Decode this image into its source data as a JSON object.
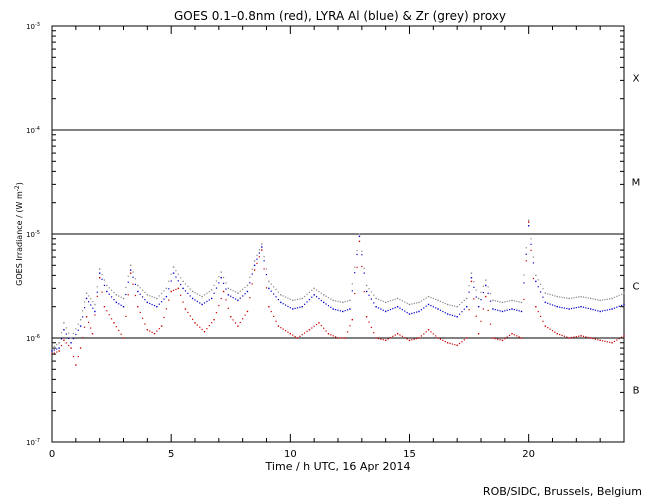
{
  "chart_data": {
    "type": "scatter",
    "title": "GOES 0.1–0.8nm (red), LYRA Al (blue) & Zr (grey) proxy",
    "xlabel": "Time / h UTC, 16 Apr 2014",
    "ylabel": "GOES Irradiance / (W m",
    "ylabel_sup": "-2",
    "ylabel_close": ")",
    "credit": "ROB/SIDC, Brussels, Belgium",
    "xlim": [
      0,
      24
    ],
    "ylim": [
      1e-07,
      0.001
    ],
    "y_scale": "log",
    "x_ticks": [
      {
        "value": 0,
        "label": "0"
      },
      {
        "value": 5,
        "label": "5"
      },
      {
        "value": 10,
        "label": "10"
      },
      {
        "value": 15,
        "label": "15"
      },
      {
        "value": 20,
        "label": "20"
      }
    ],
    "y_ticks": [
      {
        "value": 1e-07,
        "base": "10",
        "exp": "-7"
      },
      {
        "value": 1e-06,
        "base": "10",
        "exp": "-6"
      },
      {
        "value": 1e-05,
        "base": "10",
        "exp": "-5"
      },
      {
        "value": 0.0001,
        "base": "10",
        "exp": "-4"
      },
      {
        "value": 0.001,
        "base": "10",
        "exp": "-3"
      }
    ],
    "flare_classes": [
      {
        "label": "X",
        "value": 0.00032
      },
      {
        "label": "M",
        "value": 3.2e-05
      },
      {
        "label": "C",
        "value": 3.2e-06
      },
      {
        "label": "B",
        "value": 3.2e-07
      }
    ],
    "class_lines": [
      1e-06,
      1e-05,
      0.0001
    ],
    "series": [
      {
        "color": "#cc0000",
        "points": [
          [
            0.0,
            7e-07
          ],
          [
            0.3,
            7.5e-07
          ],
          [
            0.5,
            9.5e-07
          ],
          [
            0.8,
            8e-07
          ],
          [
            1.0,
            5.5e-07
          ],
          [
            1.2,
            8e-07
          ],
          [
            1.45,
            1.6e-06
          ],
          [
            1.7,
            1.1e-06
          ],
          [
            2.0,
            3.8e-06
          ],
          [
            2.2,
            2e-06
          ],
          [
            2.6,
            1.4e-06
          ],
          [
            3.0,
            1e-06
          ],
          [
            3.3,
            4.2e-06
          ],
          [
            3.6,
            2e-06
          ],
          [
            4.0,
            1.2e-06
          ],
          [
            4.3,
            1.1e-06
          ],
          [
            4.6,
            1.3e-06
          ],
          [
            5.0,
            2.8e-06
          ],
          [
            5.3,
            3e-06
          ],
          [
            5.6,
            1.9e-06
          ],
          [
            6.0,
            1.4e-06
          ],
          [
            6.4,
            1.15e-06
          ],
          [
            6.8,
            1.5e-06
          ],
          [
            7.2,
            2.8e-06
          ],
          [
            7.5,
            1.6e-06
          ],
          [
            7.8,
            1.3e-06
          ],
          [
            8.2,
            1.8e-06
          ],
          [
            8.5,
            4.5e-06
          ],
          [
            8.8,
            7e-06
          ],
          [
            9.1,
            2e-06
          ],
          [
            9.5,
            1.3e-06
          ],
          [
            10.0,
            1.1e-06
          ],
          [
            10.3,
            1e-06
          ],
          [
            10.8,
            1.2e-06
          ],
          [
            11.2,
            1.4e-06
          ],
          [
            11.6,
            1.1e-06
          ],
          [
            12.0,
            1e-06
          ],
          [
            12.3,
            1e-06
          ],
          [
            12.6,
            1.5e-06
          ],
          [
            12.9,
            8.5e-06
          ],
          [
            13.2,
            1.6e-06
          ],
          [
            13.6,
            1e-06
          ],
          [
            14.0,
            9.5e-07
          ],
          [
            14.5,
            1.1e-06
          ],
          [
            15.0,
            9.5e-07
          ],
          [
            15.4,
            1e-06
          ],
          [
            15.8,
            1.2e-06
          ],
          [
            16.2,
            1e-06
          ],
          [
            16.6,
            9e-07
          ],
          [
            17.0,
            8.5e-07
          ],
          [
            17.4,
            1e-06
          ],
          [
            17.6,
            3.5e-06
          ],
          [
            17.9,
            1.1e-06
          ],
          [
            18.2,
            2.5e-06
          ],
          [
            18.5,
            1e-06
          ],
          [
            18.9,
            9.5e-07
          ],
          [
            19.3,
            1.1e-06
          ],
          [
            19.7,
            1e-06
          ],
          [
            20.0,
            1.3e-05
          ],
          [
            20.3,
            2e-06
          ],
          [
            20.7,
            1.3e-06
          ],
          [
            21.2,
            1.1e-06
          ],
          [
            21.7,
            1e-06
          ],
          [
            22.2,
            1.05e-06
          ],
          [
            22.6,
            1e-06
          ],
          [
            23.0,
            9.5e-07
          ],
          [
            23.5,
            9e-07
          ],
          [
            24.0,
            1.05e-06
          ]
        ]
      },
      {
        "color": "#0000cc",
        "points": [
          [
            0.0,
            7.5e-07
          ],
          [
            0.3,
            8e-07
          ],
          [
            0.5,
            1.2e-06
          ],
          [
            0.8,
            9e-07
          ],
          [
            1.2,
            1.3e-06
          ],
          [
            1.45,
            2.4e-06
          ],
          [
            1.8,
            1.8e-06
          ],
          [
            2.0,
            4.2e-06
          ],
          [
            2.3,
            2.8e-06
          ],
          [
            2.7,
            2.2e-06
          ],
          [
            3.0,
            2e-06
          ],
          [
            3.3,
            4.5e-06
          ],
          [
            3.6,
            2.8e-06
          ],
          [
            4.0,
            2.2e-06
          ],
          [
            4.4,
            2e-06
          ],
          [
            4.8,
            2.5e-06
          ],
          [
            5.1,
            4.2e-06
          ],
          [
            5.5,
            3e-06
          ],
          [
            5.9,
            2.4e-06
          ],
          [
            6.3,
            2.1e-06
          ],
          [
            6.7,
            2.4e-06
          ],
          [
            7.1,
            3.8e-06
          ],
          [
            7.4,
            2.6e-06
          ],
          [
            7.8,
            2.3e-06
          ],
          [
            8.2,
            2.8e-06
          ],
          [
            8.5,
            5e-06
          ],
          [
            8.8,
            7.5e-06
          ],
          [
            9.1,
            3e-06
          ],
          [
            9.6,
            2.2e-06
          ],
          [
            10.1,
            1.9e-06
          ],
          [
            10.5,
            2e-06
          ],
          [
            11.0,
            2.6e-06
          ],
          [
            11.4,
            2.2e-06
          ],
          [
            11.8,
            1.9e-06
          ],
          [
            12.2,
            1.8e-06
          ],
          [
            12.5,
            1.9e-06
          ],
          [
            12.9,
            9.5e-06
          ],
          [
            13.2,
            2.8e-06
          ],
          [
            13.6,
            2e-06
          ],
          [
            14.0,
            1.8e-06
          ],
          [
            14.5,
            2e-06
          ],
          [
            15.0,
            1.7e-06
          ],
          [
            15.4,
            1.8e-06
          ],
          [
            15.8,
            2.1e-06
          ],
          [
            16.2,
            1.9e-06
          ],
          [
            16.6,
            1.7e-06
          ],
          [
            17.0,
            1.6e-06
          ],
          [
            17.4,
            2e-06
          ],
          [
            17.6,
            3.8e-06
          ],
          [
            17.9,
            2e-06
          ],
          [
            18.2,
            3.2e-06
          ],
          [
            18.5,
            1.9e-06
          ],
          [
            18.9,
            1.8e-06
          ],
          [
            19.3,
            1.9e-06
          ],
          [
            19.7,
            1.8e-06
          ],
          [
            20.0,
            1.2e-05
          ],
          [
            20.3,
            3.5e-06
          ],
          [
            20.7,
            2.2e-06
          ],
          [
            21.2,
            2e-06
          ],
          [
            21.7,
            1.9e-06
          ],
          [
            22.2,
            2e-06
          ],
          [
            22.6,
            1.9e-06
          ],
          [
            23.0,
            1.8e-06
          ],
          [
            23.5,
            1.9e-06
          ],
          [
            24.0,
            2.1e-06
          ]
        ]
      },
      {
        "color": "#888888",
        "points": [
          [
            0.0,
            8e-07
          ],
          [
            0.3,
            9e-07
          ],
          [
            0.5,
            1.4e-06
          ],
          [
            0.8,
            1e-06
          ],
          [
            1.2,
            1.5e-06
          ],
          [
            1.45,
            2.7e-06
          ],
          [
            1.8,
            2.1e-06
          ],
          [
            2.0,
            4.6e-06
          ],
          [
            2.3,
            3.2e-06
          ],
          [
            2.7,
            2.6e-06
          ],
          [
            3.0,
            2.4e-06
          ],
          [
            3.3,
            5e-06
          ],
          [
            3.6,
            3.2e-06
          ],
          [
            4.0,
            2.6e-06
          ],
          [
            4.4,
            2.4e-06
          ],
          [
            4.8,
            3e-06
          ],
          [
            5.1,
            4.8e-06
          ],
          [
            5.5,
            3.5e-06
          ],
          [
            5.9,
            2.8e-06
          ],
          [
            6.3,
            2.5e-06
          ],
          [
            6.7,
            2.9e-06
          ],
          [
            7.1,
            4.3e-06
          ],
          [
            7.4,
            3e-06
          ],
          [
            7.8,
            2.7e-06
          ],
          [
            8.2,
            3.2e-06
          ],
          [
            8.5,
            5.5e-06
          ],
          [
            8.8,
            8e-06
          ],
          [
            9.1,
            3.5e-06
          ],
          [
            9.6,
            2.6e-06
          ],
          [
            10.1,
            2.3e-06
          ],
          [
            10.5,
            2.4e-06
          ],
          [
            11.0,
            3e-06
          ],
          [
            11.4,
            2.6e-06
          ],
          [
            11.8,
            2.3e-06
          ],
          [
            12.2,
            2.2e-06
          ],
          [
            12.5,
            2.3e-06
          ],
          [
            12.9,
            1e-05
          ],
          [
            13.2,
            3.2e-06
          ],
          [
            13.6,
            2.4e-06
          ],
          [
            14.0,
            2.2e-06
          ],
          [
            14.5,
            2.4e-06
          ],
          [
            15.0,
            2.1e-06
          ],
          [
            15.4,
            2.2e-06
          ],
          [
            15.8,
            2.5e-06
          ],
          [
            16.2,
            2.3e-06
          ],
          [
            16.6,
            2.1e-06
          ],
          [
            17.0,
            2e-06
          ],
          [
            17.4,
            2.4e-06
          ],
          [
            17.6,
            4.2e-06
          ],
          [
            17.9,
            2.4e-06
          ],
          [
            18.2,
            3.6e-06
          ],
          [
            18.5,
            2.3e-06
          ],
          [
            18.9,
            2.2e-06
          ],
          [
            19.3,
            2.3e-06
          ],
          [
            19.7,
            2.2e-06
          ],
          [
            20.0,
            1.35e-05
          ],
          [
            20.3,
            4e-06
          ],
          [
            20.7,
            2.7e-06
          ],
          [
            21.2,
            2.5e-06
          ],
          [
            21.7,
            2.4e-06
          ],
          [
            22.2,
            2.5e-06
          ],
          [
            22.6,
            2.4e-06
          ],
          [
            23.0,
            2.3e-06
          ],
          [
            23.5,
            2.4e-06
          ],
          [
            24.0,
            2.7e-06
          ]
        ]
      }
    ]
  }
}
